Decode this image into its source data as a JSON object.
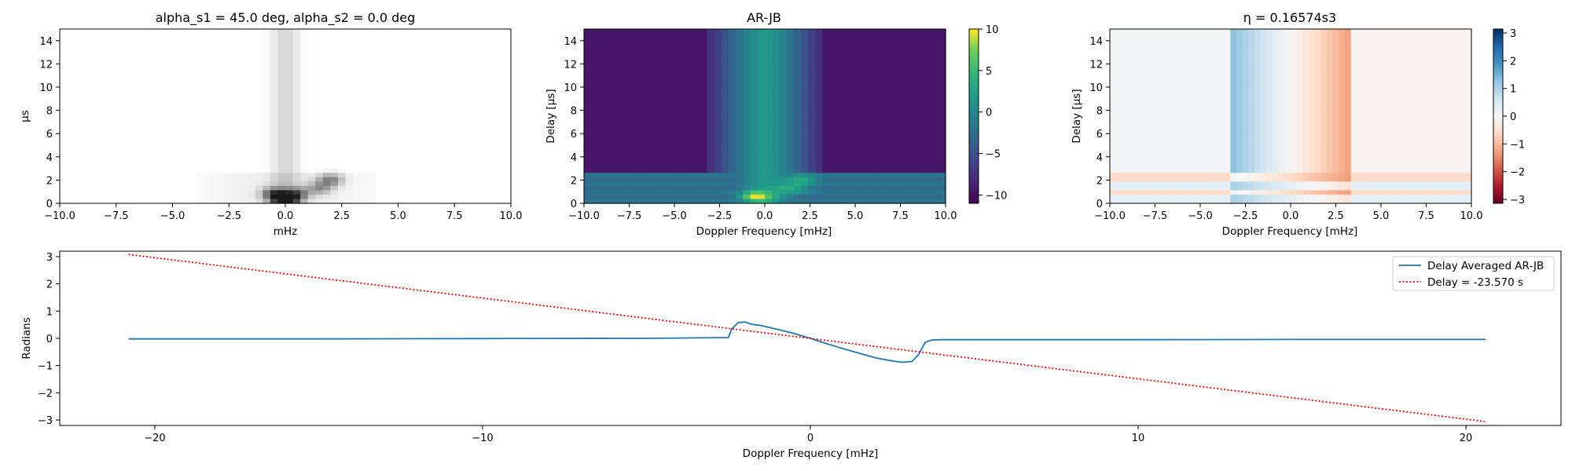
{
  "chart_data": [
    {
      "id": "panel1",
      "type": "heatmap",
      "title": "alpha_s1 = 45.0 deg, alpha_s2 = 0.0 deg",
      "xlabel": "mHz",
      "ylabel": "µs",
      "xlim": [
        -10,
        10
      ],
      "ylim": [
        0,
        15
      ],
      "xticks": [
        -10.0,
        -7.5,
        -5.0,
        -2.5,
        0.0,
        2.5,
        5.0,
        7.5,
        10.0
      ],
      "xtick_labels": [
        "−10.0",
        "−7.5",
        "−5.0",
        "−2.5",
        "0.0",
        "2.5",
        "5.0",
        "7.5",
        "10.0"
      ],
      "yticks": [
        0,
        2,
        4,
        6,
        8,
        10,
        12,
        14
      ],
      "ytick_labels": [
        "0",
        "2",
        "4",
        "6",
        "8",
        "10",
        "12",
        "14"
      ],
      "colormap": "Greys",
      "features": [
        {
          "x": 0.0,
          "y": 0.2,
          "amplitude": 1.0
        },
        {
          "x": -0.5,
          "y": 0.8,
          "amplitude": 0.7
        },
        {
          "x": 0.5,
          "y": 0.8,
          "amplitude": 0.6
        },
        {
          "x": 2.0,
          "y": 2.0,
          "amplitude": 0.5
        },
        {
          "x": 1.5,
          "y": 1.3,
          "amplitude": 0.4
        }
      ]
    },
    {
      "id": "panel2",
      "type": "heatmap",
      "title": "AR-JB",
      "xlabel": "Doppler Frequency [mHz]",
      "ylabel": "Delay [$\\mu s$]",
      "ylabel_display": "Delay [μs]",
      "xlim": [
        -10,
        10
      ],
      "ylim": [
        0,
        15
      ],
      "xticks": [
        -10.0,
        -7.5,
        -5.0,
        -2.5,
        0.0,
        2.5,
        5.0,
        7.5,
        10.0
      ],
      "xtick_labels": [
        "−10.0",
        "−7.5",
        "−5.0",
        "−2.5",
        "0.0",
        "2.5",
        "5.0",
        "7.5",
        "10.0"
      ],
      "yticks": [
        0,
        2,
        4,
        6,
        8,
        10,
        12,
        14
      ],
      "ytick_labels": [
        "0",
        "2",
        "4",
        "6",
        "8",
        "10",
        "12",
        "14"
      ],
      "colormap": "viridis",
      "colorbar": {
        "range": [
          -11,
          10
        ],
        "ticks": [
          -10,
          -5,
          0,
          5,
          10
        ],
        "tick_labels": [
          "−10",
          "−5",
          "0",
          "5",
          "10"
        ]
      },
      "background_value": -9.5,
      "band": {
        "x_range": [
          -3.3,
          3.3
        ],
        "value": -7.5
      },
      "center_column": {
        "x_range": [
          -2.5,
          2.5
        ],
        "value": -1.5
      },
      "low_delay_strip": {
        "y_range": [
          0,
          2.5
        ],
        "value": -2.5
      },
      "peaks": [
        {
          "x": -0.5,
          "y": 0.6,
          "value": 10
        },
        {
          "x": 2.0,
          "y": 2.0,
          "value": 7
        },
        {
          "x": 1.5,
          "y": 1.2,
          "value": 6
        }
      ]
    },
    {
      "id": "panel3",
      "type": "heatmap",
      "title": "η = 0.16574s3",
      "xlabel": "Doppler Frequency [mHz]",
      "ylabel": "Delay [$\\mu s$]",
      "ylabel_display": "Delay [μs]",
      "xlim": [
        -10,
        10
      ],
      "ylim": [
        0,
        15
      ],
      "xticks": [
        -10.0,
        -7.5,
        -5.0,
        -2.5,
        0.0,
        2.5,
        5.0,
        7.5,
        10.0
      ],
      "xtick_labels": [
        "−10.0",
        "−7.5",
        "−5.0",
        "−2.5",
        "0.0",
        "2.5",
        "5.0",
        "7.5",
        "10.0"
      ],
      "yticks": [
        0,
        2,
        4,
        6,
        8,
        10,
        12,
        14
      ],
      "ytick_labels": [
        "0",
        "2",
        "4",
        "6",
        "8",
        "10",
        "12",
        "14"
      ],
      "colormap": "RdBu",
      "colorbar": {
        "range": [
          -3.14159,
          3.14159
        ],
        "ticks": [
          -3,
          -2,
          -1,
          0,
          1,
          2,
          3
        ],
        "tick_labels": [
          "−3",
          "−2",
          "−1",
          "0",
          "1",
          "2",
          "3"
        ]
      },
      "phase_slope_per_mHz": -0.45,
      "band_x_range": [
        -3.4,
        3.4
      ],
      "low_delay_strip": {
        "y_range": [
          0,
          2.6
        ]
      }
    },
    {
      "id": "panel4",
      "type": "line",
      "xlabel": "Doppler Frequency [mHz]",
      "ylabel": "Radians",
      "xlim": [
        -22.9,
        22.9
      ],
      "ylim": [
        -3.2,
        3.2
      ],
      "xticks": [
        -20,
        -10,
        0,
        10,
        20
      ],
      "xtick_labels": [
        "−20",
        "−10",
        "0",
        "10",
        "20"
      ],
      "yticks": [
        -3,
        -2,
        -1,
        0,
        1,
        2,
        3
      ],
      "ytick_labels": [
        "−3",
        "−2",
        "−1",
        "0",
        "1",
        "2",
        "3"
      ],
      "legend_position": "upper right",
      "series": [
        {
          "name": "Delay Averaged  AR-JB",
          "color": "#1f77b4",
          "style": "solid",
          "x": [
            -20.8,
            -15,
            -10,
            -5,
            -2.5,
            -2.4,
            -2.2,
            -2.0,
            -1.8,
            -1.5,
            -1.0,
            -0.5,
            0.0,
            0.5,
            1.0,
            1.5,
            2.0,
            2.5,
            2.8,
            3.1,
            3.3,
            3.5,
            3.7,
            4.0,
            10,
            15,
            20.6
          ],
          "y": [
            -0.02,
            -0.02,
            -0.01,
            0.0,
            0.03,
            0.35,
            0.58,
            0.6,
            0.52,
            0.47,
            0.33,
            0.18,
            0.0,
            -0.2,
            -0.38,
            -0.55,
            -0.72,
            -0.83,
            -0.88,
            -0.85,
            -0.6,
            -0.15,
            -0.06,
            -0.05,
            -0.05,
            -0.04,
            -0.04
          ]
        },
        {
          "name": "Delay = -23.570 s",
          "color": "#ff0000",
          "style": "dotted",
          "x": [
            -20.8,
            20.6
          ],
          "y": [
            3.08,
            -3.06
          ]
        }
      ]
    }
  ]
}
